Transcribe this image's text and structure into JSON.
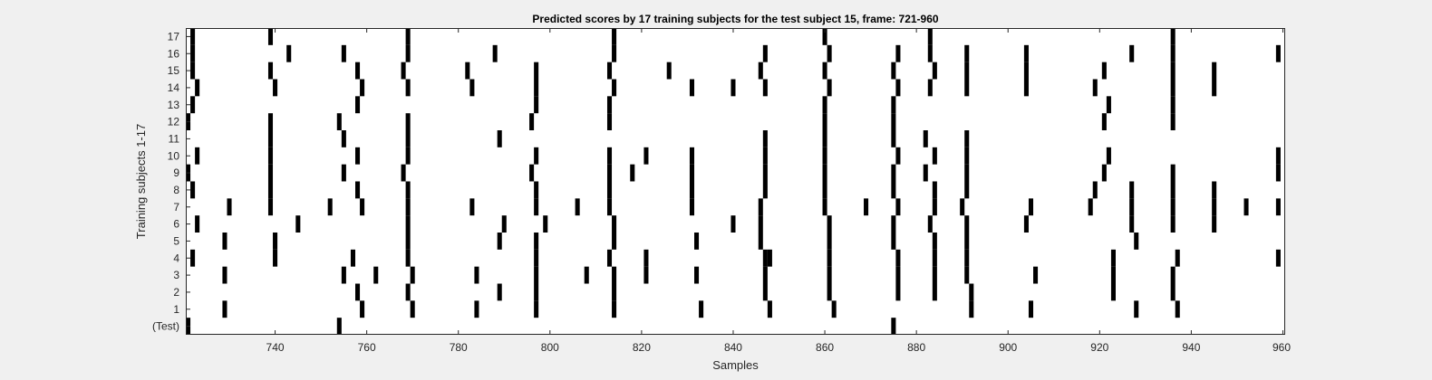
{
  "chart_data": {
    "type": "heatmap",
    "title": "Predicted scores by 17 training subjects for the test subject 15, frame: 721-960",
    "xlabel": "Samples",
    "ylabel": "Training subjects 1-17",
    "xlim": [
      721,
      960
    ],
    "x_ticks": [
      "740",
      "760",
      "780",
      "800",
      "820",
      "840",
      "860",
      "880",
      "900",
      "920",
      "940",
      "960"
    ],
    "y_ticks": [
      "(Test)",
      "1",
      "2",
      "3",
      "4",
      "5",
      "6",
      "7",
      "8",
      "9",
      "10",
      "11",
      "12",
      "13",
      "14",
      "15",
      "16",
      "17"
    ],
    "grid": false,
    "colors": {
      "on": "#000000",
      "off": "#ffffff"
    },
    "rows": [
      {
        "label": "(Test)",
        "x": [
          721,
          754,
          875
        ]
      },
      {
        "label": "1",
        "x": [
          729,
          759,
          770,
          784,
          797,
          814,
          833,
          848,
          862,
          892,
          905,
          928,
          937
        ]
      },
      {
        "label": "2",
        "x": [
          758,
          789,
          769,
          797,
          814,
          847,
          861,
          876,
          884,
          892,
          923,
          936
        ]
      },
      {
        "label": "3",
        "x": [
          729,
          755,
          762,
          770,
          784,
          797,
          808,
          814,
          821,
          832,
          847,
          861,
          876,
          884,
          891,
          906,
          923,
          936
        ]
      },
      {
        "label": "4",
        "x": [
          722,
          740,
          757,
          769,
          797,
          813,
          821,
          847,
          848,
          861,
          876,
          884,
          891,
          923,
          937,
          959
        ]
      },
      {
        "label": "5",
        "x": [
          729,
          740,
          769,
          789,
          797,
          814,
          832,
          846,
          861,
          875,
          884,
          891,
          928
        ]
      },
      {
        "label": "6",
        "x": [
          723,
          745,
          769,
          790,
          799,
          814,
          840,
          846,
          861,
          875,
          883,
          891,
          904,
          927,
          936,
          945
        ]
      },
      {
        "label": "7",
        "x": [
          730,
          739,
          752,
          759,
          769,
          783,
          797,
          806,
          813,
          831,
          846,
          860,
          869,
          876,
          884,
          890,
          905,
          918,
          927,
          936,
          945,
          952,
          959
        ]
      },
      {
        "label": "8",
        "x": [
          722,
          739,
          758,
          769,
          797,
          813,
          831,
          847,
          860,
          875,
          884,
          891,
          919,
          927,
          936,
          945
        ]
      },
      {
        "label": "9",
        "x": [
          721,
          739,
          755,
          768,
          796,
          813,
          818,
          831,
          847,
          860,
          875,
          882,
          891,
          921,
          936,
          959
        ]
      },
      {
        "label": "10",
        "x": [
          723,
          739,
          758,
          769,
          797,
          813,
          821,
          831,
          847,
          860,
          876,
          884,
          891,
          922,
          959
        ]
      },
      {
        "label": "11",
        "x": [
          739,
          755,
          769,
          789,
          847,
          860,
          875,
          882,
          891
        ]
      },
      {
        "label": "12",
        "x": [
          721,
          739,
          754,
          769,
          796,
          813,
          860,
          875,
          921,
          936
        ]
      },
      {
        "label": "13",
        "x": [
          722,
          758,
          797,
          813,
          860,
          875,
          922,
          936
        ]
      },
      {
        "label": "14",
        "x": [
          723,
          740,
          759,
          769,
          783,
          797,
          814,
          831,
          840,
          847,
          861,
          876,
          883,
          891,
          904,
          919,
          936,
          945
        ]
      },
      {
        "label": "15",
        "x": [
          722,
          739,
          758,
          768,
          782,
          797,
          813,
          826,
          846,
          860,
          875,
          884,
          891,
          904,
          921,
          936,
          945
        ]
      },
      {
        "label": "16",
        "x": [
          722,
          743,
          755,
          769,
          788,
          814,
          847,
          861,
          876,
          883,
          891,
          904,
          927,
          936,
          959
        ]
      },
      {
        "label": "17",
        "x": [
          722,
          739,
          769,
          814,
          860,
          883,
          936
        ]
      }
    ]
  }
}
